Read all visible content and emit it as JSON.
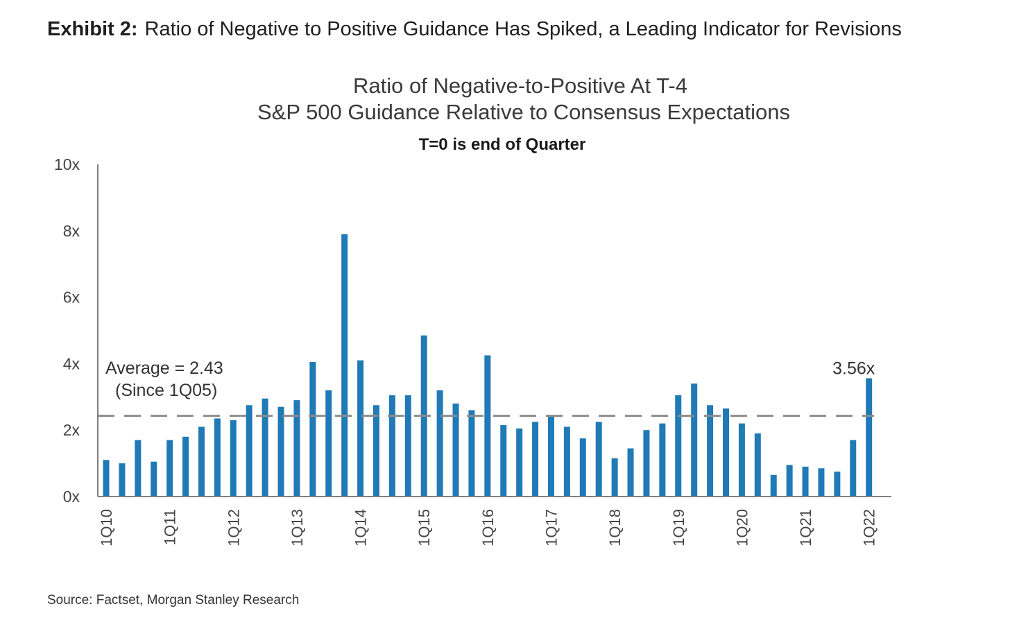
{
  "header": {
    "exhibit_label": "Exhibit 2:",
    "exhibit_title": "Ratio of Negative to Positive Guidance Has Spiked, a Leading Indicator for Revisions"
  },
  "source": "Source: Factset, Morgan Stanley Research",
  "colors": {
    "bar": "#1f7ab5",
    "axis": "#7f7f7f",
    "average_line": "#8c8c8c"
  },
  "chart_data": {
    "type": "bar",
    "title": "Ratio of Negative-to-Positive  At T-4",
    "subtitle": "S&P 500 Guidance  Relative  to Consensus  Expectations",
    "note": "T=0 is end of Quarter",
    "xlabel": "",
    "ylabel": "",
    "ylim": [
      0,
      10
    ],
    "yticks": [
      "0x",
      "2x",
      "4x",
      "6x",
      "8x",
      "10x"
    ],
    "categories": [
      "1Q10",
      "2Q10",
      "3Q10",
      "4Q10",
      "1Q11",
      "2Q11",
      "3Q11",
      "4Q11",
      "1Q12",
      "2Q12",
      "3Q12",
      "4Q12",
      "1Q13",
      "2Q13",
      "3Q13",
      "4Q13",
      "1Q14",
      "2Q14",
      "3Q14",
      "4Q14",
      "1Q15",
      "2Q15",
      "3Q15",
      "4Q15",
      "1Q16",
      "2Q16",
      "3Q16",
      "4Q16",
      "1Q17",
      "2Q17",
      "3Q17",
      "4Q17",
      "1Q18",
      "2Q18",
      "3Q18",
      "4Q18",
      "1Q19",
      "2Q19",
      "3Q19",
      "4Q19",
      "1Q20",
      "2Q20",
      "3Q20",
      "4Q20",
      "1Q21",
      "2Q21",
      "3Q21",
      "4Q21",
      "1Q22"
    ],
    "x_tick_labels": [
      "1Q10",
      "1Q11",
      "1Q12",
      "1Q13",
      "1Q14",
      "1Q15",
      "1Q16",
      "1Q17",
      "1Q18",
      "1Q19",
      "1Q20",
      "1Q21",
      "1Q22"
    ],
    "values": [
      1.1,
      1.0,
      1.7,
      1.05,
      1.7,
      1.8,
      2.1,
      2.35,
      2.3,
      2.75,
      2.95,
      2.7,
      2.9,
      4.05,
      3.2,
      7.9,
      4.1,
      2.75,
      3.05,
      3.05,
      4.85,
      3.2,
      2.8,
      2.6,
      4.25,
      2.15,
      2.05,
      2.25,
      2.45,
      2.1,
      1.75,
      2.25,
      1.15,
      1.45,
      2.0,
      2.2,
      3.05,
      3.4,
      2.75,
      2.65,
      2.2,
      1.9,
      0.65,
      0.95,
      0.9,
      0.85,
      0.75,
      1.7,
      3.56
    ],
    "average": {
      "value": 2.43,
      "label_line1": "Average  = 2.43",
      "label_line2": "(Since 1Q05)"
    },
    "last_label": "3.56x",
    "grid": false,
    "legend": "none"
  }
}
